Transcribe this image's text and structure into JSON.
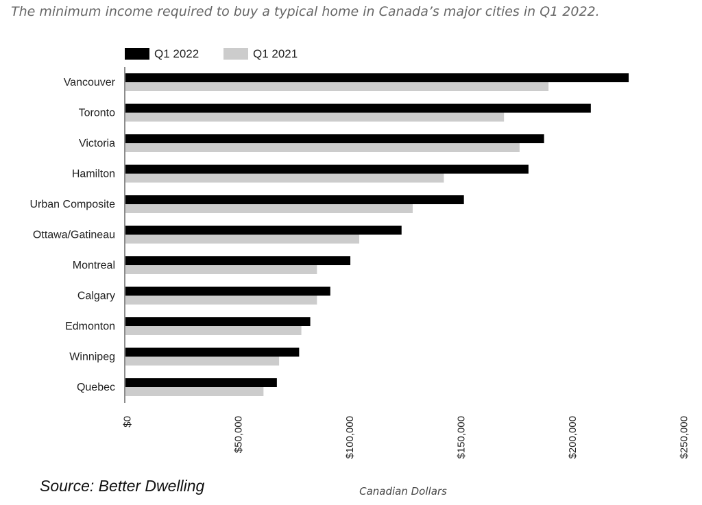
{
  "chart_data": {
    "type": "bar",
    "orientation": "horizontal",
    "title": "The minimum income required to buy a typical home in Canada’s major cities in Q1 2022.",
    "xlabel": "Canadian Dollars",
    "ylabel": "",
    "source": "Source: Better Dwelling",
    "xlim": [
      0,
      250000
    ],
    "ticks": [
      0,
      50000,
      100000,
      150000,
      200000,
      250000
    ],
    "tick_labels": [
      "$0",
      "$50,000",
      "$100,000",
      "$150,000",
      "$200,000",
      "$250,000"
    ],
    "grid": false,
    "legend_position": "top-left",
    "categories": [
      "Vancouver",
      "Toronto",
      "Victoria",
      "Hamilton",
      "Urban Composite",
      "Ottawa/Gatineau",
      "Montreal",
      "Calgary",
      "Edmonton",
      "Winnipeg",
      "Quebec"
    ],
    "series": [
      {
        "name": "Q1 2022",
        "color": "#000000",
        "values": [
          226000,
          209000,
          188000,
          181000,
          152000,
          124000,
          101000,
          92000,
          83000,
          78000,
          68000
        ]
      },
      {
        "name": "Q1 2021",
        "color": "#cccccc",
        "values": [
          190000,
          170000,
          177000,
          143000,
          129000,
          105000,
          86000,
          86000,
          79000,
          69000,
          62000
        ]
      }
    ]
  }
}
